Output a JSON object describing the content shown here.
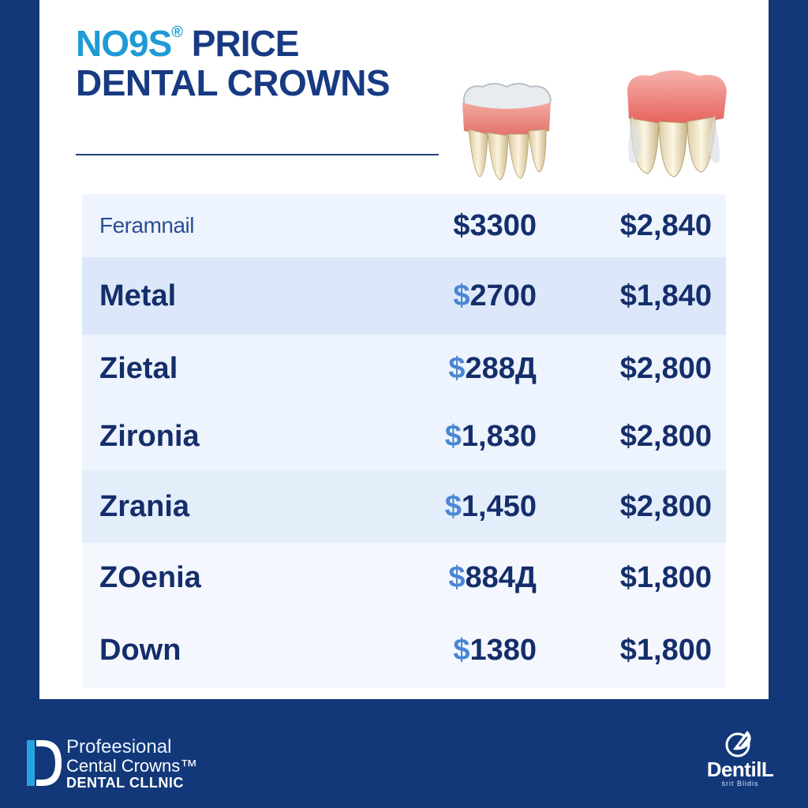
{
  "header": {
    "brand": "NO9S",
    "brand_mark": "®",
    "title_part1": "PRICE",
    "title_line2": "DENTAL CROWNS"
  },
  "icons": [
    "tooth-crown-icon",
    "tooth-crown-icon",
    "dental-clinic-logo-icon",
    "dentill-logo-icon"
  ],
  "colors": {
    "background": "#12387a",
    "card": "#ffffff",
    "accent": "#1e9ad6",
    "text": "#152e6b",
    "dollar_accent": "#4a86d4"
  },
  "table": {
    "rows": [
      {
        "label": "Feramnail",
        "price1_symbol": "$",
        "price1": "3300",
        "price2": "$2,840"
      },
      {
        "label": "Metal",
        "price1_symbol": "$",
        "price1": "2700",
        "price2": "$1,840"
      },
      {
        "label": "Zietal",
        "price1_symbol": "$",
        "price1": "288Д",
        "price2": "$2,800"
      },
      {
        "label": "Zironia",
        "price1_symbol": "$",
        "price1": "1,830",
        "price2": "$2,800"
      },
      {
        "label": "Zrania",
        "price1_symbol": "$",
        "price1": "1,450",
        "price2": "$2,800"
      },
      {
        "label": "ZOenia",
        "price1_symbol": "$",
        "price1": "884Д",
        "price2": "$1,800"
      },
      {
        "label": "Down",
        "price1_symbol": "$",
        "price1": "1380",
        "price2": "$1,800"
      }
    ]
  },
  "footer": {
    "line1": "Profeesional",
    "line2": "Cental Crowns™",
    "line3": "DENTAL CLLNIC",
    "right_logo_name": "DentilL",
    "right_logo_sub": "ṡrit Blidis"
  }
}
